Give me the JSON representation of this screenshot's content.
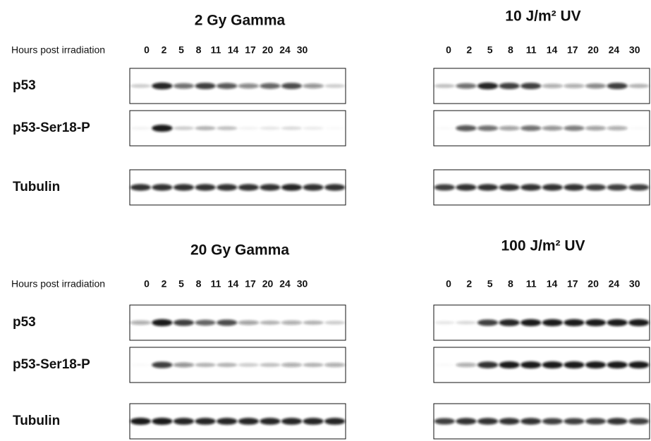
{
  "panels": [
    {
      "title": "2 Gy Gamma",
      "hours_label": "Hours post irradiation",
      "lanes": [
        "0",
        "2",
        "5",
        "8",
        "11",
        "14",
        "17",
        "20",
        "24",
        "30"
      ],
      "rows": [
        "p53",
        "p53-Ser18-P",
        "Tubulin"
      ]
    },
    {
      "title": "10 J/m² UV",
      "lanes": [
        "0",
        "2",
        "5",
        "8",
        "11",
        "14",
        "17",
        "20",
        "24",
        "30"
      ]
    },
    {
      "title": "20 Gy Gamma",
      "hours_label": "Hours post irradiation",
      "lanes": [
        "0",
        "2",
        "5",
        "8",
        "11",
        "14",
        "17",
        "20",
        "24",
        "30"
      ],
      "rows": [
        "p53",
        "p53-Ser18-P",
        "Tubulin"
      ]
    },
    {
      "title": "100 J/m² UV",
      "lanes": [
        "0",
        "2",
        "5",
        "8",
        "11",
        "14",
        "17",
        "20",
        "24",
        "30"
      ]
    }
  ]
}
